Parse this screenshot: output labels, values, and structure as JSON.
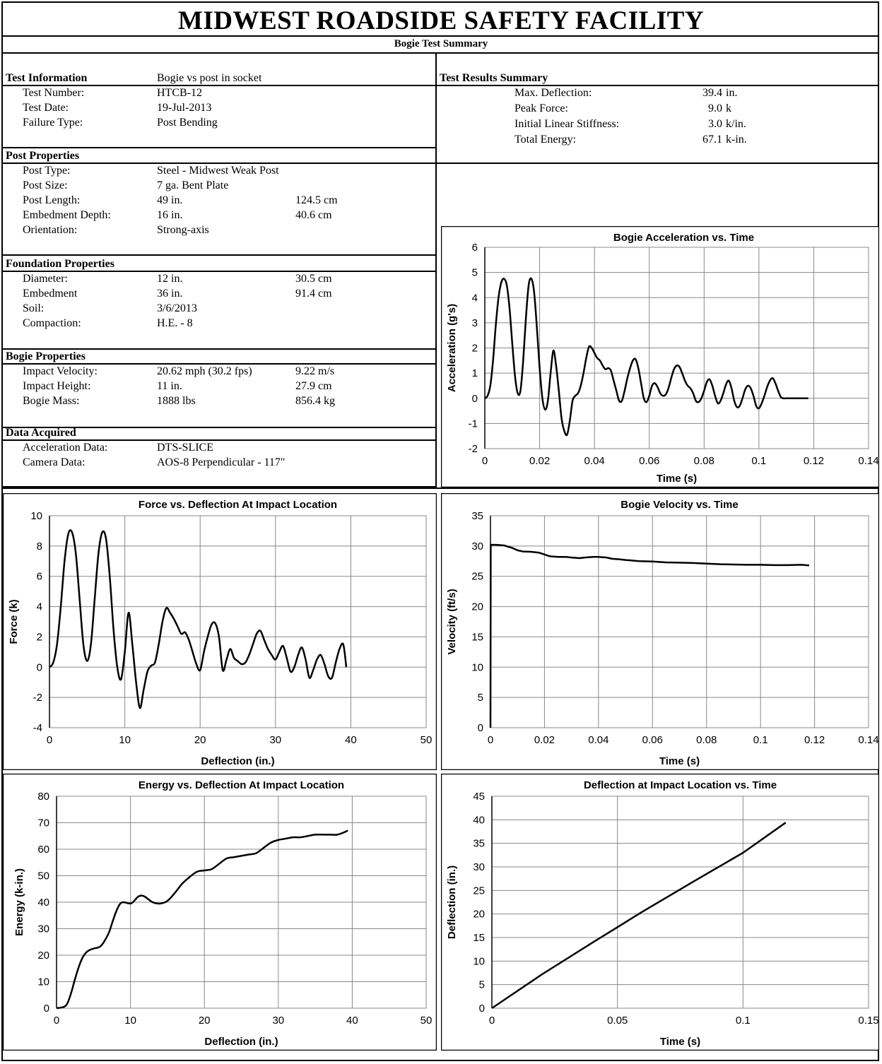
{
  "header": {
    "title": "MIDWEST ROADSIDE SAFETY FACILITY",
    "subtitle": "Bogie Test Summary"
  },
  "test_information": {
    "heading": "Test Information",
    "heading_value": "Bogie vs post in socket",
    "rows": [
      {
        "label": "Test Number:",
        "value": "HTCB-12"
      },
      {
        "label": "Test Date:",
        "value": "19-Jul-2013"
      },
      {
        "label": "Failure Type:",
        "value": "Post Bending"
      }
    ]
  },
  "post_properties": {
    "heading": "Post Properties",
    "rows": [
      {
        "label": "Post Type:",
        "value": "Steel - Midwest Weak Post",
        "metric": ""
      },
      {
        "label": "Post Size:",
        "value": "7 ga. Bent Plate",
        "metric": ""
      },
      {
        "label": "Post Length:",
        "value": "49 in.",
        "metric": "124.5 cm"
      },
      {
        "label": "Embedment Depth:",
        "value": "16 in.",
        "metric": "40.6 cm"
      },
      {
        "label": "Orientation:",
        "value": "Strong-axis",
        "metric": ""
      }
    ]
  },
  "foundation_properties": {
    "heading": "Foundation Properties",
    "rows": [
      {
        "label": "Diameter:",
        "value": "12 in.",
        "metric": "30.5 cm"
      },
      {
        "label": "Embedment",
        "value": "36 in.",
        "metric": "91.4 cm"
      },
      {
        "label": "Soil:",
        "value": "3/6/2013",
        "metric": ""
      },
      {
        "label": "Compaction:",
        "value": "H.E. - 8",
        "metric": ""
      }
    ]
  },
  "bogie_properties": {
    "heading": "Bogie Properties",
    "rows": [
      {
        "label": "Impact Velocity:",
        "value": "20.62 mph  (30.2 fps)",
        "metric": "9.22 m/s"
      },
      {
        "label": "Impact Height:",
        "value": "11 in.",
        "metric": "27.9 cm"
      },
      {
        "label": "Bogie Mass:",
        "value": "1888 lbs",
        "metric": "856.4 kg"
      }
    ]
  },
  "data_acquired": {
    "heading": "Data Acquired",
    "rows": [
      {
        "label": "Acceleration Data:",
        "value": "DTS-SLICE"
      },
      {
        "label": "Camera Data:",
        "value": "AOS-8 Perpendicular - 117\""
      }
    ]
  },
  "test_results": {
    "heading": "Test Results Summary",
    "rows": [
      {
        "label": "Max. Deflection:",
        "value": "39.4",
        "unit": "in."
      },
      {
        "label": "Peak Force:",
        "value": "9.0",
        "unit": "k"
      },
      {
        "label": "Initial Linear Stiffness:",
        "value": "3.0",
        "unit": "k/in."
      },
      {
        "label": "Total Energy:",
        "value": "67.1",
        "unit": "k-in."
      }
    ]
  },
  "chart_data": [
    {
      "id": "accel",
      "type": "line",
      "title": "Bogie Acceleration vs. Time",
      "xlabel": "Time (s)",
      "ylabel": "Acceleration (g's)",
      "xlim": [
        0,
        0.14
      ],
      "ylim": [
        -2,
        6
      ],
      "xticks": [
        0,
        0.02,
        0.04,
        0.06,
        0.08,
        0.1,
        0.12,
        0.14
      ],
      "yticks": [
        -2,
        -1,
        0,
        1,
        2,
        3,
        4,
        5,
        6
      ],
      "grid": true,
      "x": [
        0,
        0.001,
        0.002,
        0.003,
        0.004,
        0.005,
        0.006,
        0.007,
        0.008,
        0.009,
        0.01,
        0.011,
        0.012,
        0.013,
        0.014,
        0.015,
        0.016,
        0.017,
        0.018,
        0.019,
        0.02,
        0.021,
        0.022,
        0.023,
        0.024,
        0.025,
        0.026,
        0.027,
        0.028,
        0.029,
        0.03,
        0.031,
        0.032,
        0.033,
        0.034,
        0.035,
        0.036,
        0.037,
        0.038,
        0.039,
        0.04,
        0.041,
        0.042,
        0.043,
        0.044,
        0.045,
        0.046,
        0.047,
        0.048,
        0.049,
        0.05,
        0.051,
        0.052,
        0.053,
        0.054,
        0.055,
        0.056,
        0.057,
        0.058,
        0.059,
        0.06,
        0.061,
        0.062,
        0.063,
        0.064,
        0.065,
        0.066,
        0.067,
        0.068,
        0.069,
        0.07,
        0.071,
        0.072,
        0.073,
        0.074,
        0.075,
        0.076,
        0.077,
        0.078,
        0.079,
        0.08,
        0.081,
        0.082,
        0.083,
        0.084,
        0.085,
        0.086,
        0.087,
        0.088,
        0.089,
        0.09,
        0.091,
        0.092,
        0.093,
        0.094,
        0.095,
        0.096,
        0.097,
        0.098,
        0.099,
        0.1,
        0.101,
        0.102,
        0.103,
        0.104,
        0.105,
        0.106,
        0.107,
        0.108,
        0.109,
        0.11,
        0.111,
        0.112,
        0.113,
        0.114,
        0.115,
        0.116,
        0.117,
        0.118
      ],
      "series": [
        {
          "name": "",
          "values": [
            0.0,
            0.1,
            0.5,
            1.5,
            2.9,
            4.0,
            4.6,
            4.75,
            4.5,
            3.6,
            2.2,
            0.9,
            0.2,
            0.3,
            1.5,
            3.2,
            4.5,
            4.75,
            4.2,
            2.8,
            1.2,
            0.0,
            -0.45,
            -0.1,
            1.0,
            1.9,
            1.3,
            0.3,
            -0.8,
            -1.3,
            -1.45,
            -0.9,
            -0.1,
            0.1,
            0.2,
            0.5,
            1.0,
            1.6,
            2.05,
            2.0,
            1.8,
            1.6,
            1.5,
            1.3,
            1.15,
            1.2,
            1.1,
            0.7,
            0.3,
            -0.1,
            -0.1,
            0.3,
            0.8,
            1.2,
            1.5,
            1.55,
            1.2,
            0.6,
            0.0,
            -0.15,
            0.1,
            0.5,
            0.6,
            0.45,
            0.2,
            0.1,
            0.15,
            0.4,
            0.8,
            1.15,
            1.3,
            1.25,
            1.0,
            0.7,
            0.5,
            0.4,
            0.2,
            -0.1,
            -0.15,
            0.0,
            0.3,
            0.65,
            0.75,
            0.5,
            0.1,
            -0.2,
            -0.1,
            0.2,
            0.55,
            0.7,
            0.4,
            -0.1,
            -0.35,
            -0.3,
            0.0,
            0.35,
            0.5,
            0.4,
            0.1,
            -0.3,
            -0.4,
            -0.2,
            0.1,
            0.45,
            0.7,
            0.8,
            0.6,
            0.3,
            0.05,
            0.0,
            0.0,
            0.0,
            0.0,
            0.0,
            0.0,
            0.0,
            0.0,
            0.0,
            0.0
          ]
        }
      ]
    },
    {
      "id": "force",
      "type": "line",
      "title": "Force vs. Deflection At Impact  Location",
      "xlabel": "Deflection (in.)",
      "ylabel": "Force (k)",
      "xlim": [
        0,
        50
      ],
      "ylim": [
        -4,
        10
      ],
      "xticks": [
        0,
        10,
        20,
        30,
        40,
        50
      ],
      "yticks": [
        -4,
        -2,
        0,
        2,
        4,
        6,
        8,
        10
      ],
      "grid": true,
      "x": [
        0,
        0.5,
        1.0,
        1.5,
        2.0,
        2.5,
        3.0,
        3.5,
        4.0,
        4.5,
        5.0,
        5.5,
        6.0,
        6.5,
        7.0,
        7.5,
        8.0,
        8.5,
        9.0,
        9.5,
        10.0,
        10.5,
        11.0,
        11.5,
        12.0,
        12.5,
        13.0,
        13.5,
        14.0,
        14.5,
        15.0,
        15.5,
        16.0,
        16.5,
        17.0,
        17.5,
        18.0,
        18.5,
        19.0,
        19.5,
        20.0,
        20.5,
        21.0,
        21.5,
        22.0,
        22.5,
        23.0,
        23.5,
        24.0,
        24.5,
        25.0,
        25.5,
        26.0,
        26.5,
        27.0,
        27.5,
        28.0,
        28.5,
        29.0,
        29.5,
        30.0,
        30.5,
        31.0,
        31.5,
        32.0,
        32.5,
        33.0,
        33.5,
        34.0,
        34.5,
        35.0,
        35.5,
        36.0,
        36.5,
        37.0,
        37.5,
        38.0,
        38.5,
        39.0,
        39.4
      ],
      "series": [
        {
          "name": "",
          "values": [
            0.0,
            0.3,
            1.5,
            4.0,
            7.0,
            8.8,
            8.9,
            7.5,
            4.5,
            1.5,
            0.4,
            1.5,
            4.5,
            7.5,
            8.9,
            8.5,
            6.0,
            2.5,
            0.0,
            -0.8,
            1.0,
            3.6,
            1.5,
            -1.0,
            -2.7,
            -1.5,
            -0.3,
            0.1,
            0.3,
            1.5,
            3.0,
            3.9,
            3.6,
            3.2,
            2.7,
            2.2,
            2.3,
            1.8,
            1.0,
            0.2,
            -0.2,
            1.0,
            2.0,
            2.8,
            2.9,
            2.0,
            -0.2,
            0.5,
            1.2,
            0.6,
            0.4,
            0.2,
            0.3,
            0.8,
            1.5,
            2.2,
            2.4,
            1.8,
            1.2,
            0.8,
            0.5,
            1.0,
            1.4,
            0.6,
            -0.3,
            0.0,
            0.8,
            1.3,
            0.5,
            -0.7,
            -0.2,
            0.5,
            0.8,
            0.2,
            -0.6,
            -0.7,
            0.3,
            1.2,
            1.5,
            0.0
          ]
        }
      ]
    },
    {
      "id": "velocity",
      "type": "line",
      "title": "Bogie Velocity vs. Time",
      "xlabel": "Time (s)",
      "ylabel": "Velocity (ft/s)",
      "xlim": [
        0,
        0.14
      ],
      "ylim": [
        0,
        35
      ],
      "xticks": [
        0,
        0.02,
        0.04,
        0.06,
        0.08,
        0.1,
        0.12,
        0.14
      ],
      "yticks": [
        0,
        5,
        10,
        15,
        20,
        25,
        30,
        35
      ],
      "grid": true,
      "x": [
        0,
        0.0001,
        0.002,
        0.005,
        0.008,
        0.01,
        0.012,
        0.015,
        0.018,
        0.02,
        0.022,
        0.025,
        0.028,
        0.03,
        0.033,
        0.035,
        0.038,
        0.04,
        0.043,
        0.045,
        0.048,
        0.05,
        0.055,
        0.06,
        0.065,
        0.07,
        0.075,
        0.08,
        0.085,
        0.09,
        0.095,
        0.1,
        0.105,
        0.11,
        0.115,
        0.118
      ],
      "series": [
        {
          "name": "",
          "values": [
            0,
            30.2,
            30.2,
            30.1,
            29.7,
            29.3,
            29.1,
            29.05,
            28.9,
            28.6,
            28.3,
            28.2,
            28.2,
            28.1,
            28.0,
            28.1,
            28.2,
            28.2,
            28.1,
            27.9,
            27.8,
            27.7,
            27.5,
            27.45,
            27.3,
            27.25,
            27.2,
            27.1,
            27.0,
            26.95,
            26.9,
            26.9,
            26.85,
            26.85,
            26.9,
            26.8
          ]
        }
      ]
    },
    {
      "id": "energy",
      "type": "line",
      "title": "Energy vs. Deflection At Impact  Location",
      "xlabel": "Deflection (in.)",
      "ylabel": "Energy (k-in.)",
      "xlim": [
        0,
        50
      ],
      "ylim": [
        0,
        80
      ],
      "xticks": [
        0,
        10,
        20,
        30,
        40,
        50
      ],
      "yticks": [
        0,
        10,
        20,
        30,
        40,
        50,
        60,
        70,
        80
      ],
      "grid": true,
      "x": [
        0,
        1,
        1.5,
        2,
        2.5,
        3,
        3.5,
        4,
        4.5,
        5,
        6,
        7,
        7.5,
        8,
        8.5,
        9,
        10,
        10.5,
        11,
        11.5,
        12,
        13,
        14,
        15,
        16,
        17,
        18,
        19,
        20,
        21,
        22,
        23,
        24,
        25,
        26,
        27,
        28,
        29,
        30,
        31,
        32,
        33,
        34,
        35,
        36,
        37,
        38,
        39,
        39.4
      ],
      "series": [
        {
          "name": "",
          "values": [
            0,
            0.5,
            2,
            6,
            11,
            15.5,
            19,
            21,
            22,
            22.5,
            23.5,
            28,
            32,
            36,
            39,
            40,
            39.5,
            40.5,
            42,
            42.5,
            42,
            40,
            39.5,
            40.5,
            43.5,
            47,
            49.5,
            51.5,
            52,
            52.5,
            54.5,
            56.5,
            57,
            57.5,
            58,
            58.5,
            60.5,
            62.5,
            63.5,
            64,
            64.5,
            64.5,
            65,
            65.5,
            65.5,
            65.5,
            65.5,
            66.5,
            67.1
          ]
        }
      ]
    },
    {
      "id": "deflection",
      "type": "line",
      "title": "Deflection at Impact  Location vs. Time",
      "xlabel": "Time (s)",
      "ylabel": "Deflection (in.)",
      "xlim": [
        0,
        0.15
      ],
      "ylim": [
        0,
        45
      ],
      "xticks": [
        0,
        0.05,
        0.1,
        0.15
      ],
      "yticks": [
        0,
        5,
        10,
        15,
        20,
        25,
        30,
        35,
        40,
        45
      ],
      "grid": true,
      "x": [
        0,
        0.02,
        0.04,
        0.06,
        0.08,
        0.1,
        0.117
      ],
      "series": [
        {
          "name": "",
          "values": [
            0,
            7.2,
            13.9,
            20.5,
            26.8,
            33.0,
            39.4
          ]
        }
      ]
    }
  ]
}
